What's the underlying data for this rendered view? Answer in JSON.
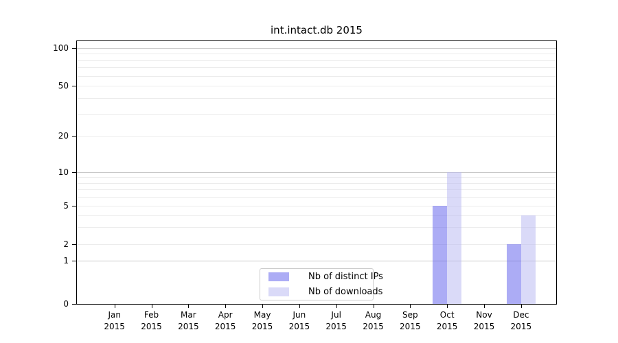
{
  "chart_data": {
    "type": "bar",
    "title": "int.intact.db 2015",
    "categories": [
      "Jan",
      "Feb",
      "Mar",
      "Apr",
      "May",
      "Jun",
      "Jul",
      "Aug",
      "Sep",
      "Oct",
      "Nov",
      "Dec"
    ],
    "x_year_label": "2015",
    "series": [
      {
        "name": "Nb of distinct IPs",
        "color": "#5959eb",
        "opacity": 0.5,
        "values": [
          0,
          0,
          0,
          0,
          0,
          0,
          0,
          0,
          0,
          5,
          0,
          2
        ]
      },
      {
        "name": "Nb of downloads",
        "color": "#b6b6f1",
        "opacity": 0.5,
        "values": [
          0,
          0,
          0,
          0,
          0,
          0,
          0,
          0,
          0,
          10,
          0,
          4
        ]
      }
    ],
    "yticks": [
      0,
      1,
      2,
      5,
      10,
      20,
      50,
      100
    ],
    "major_gridlines": [
      1,
      10,
      100
    ],
    "minor_gridlines": [
      2,
      3,
      4,
      5,
      6,
      7,
      8,
      9,
      20,
      30,
      40,
      50,
      60,
      70,
      80,
      90
    ],
    "grid_major_color": "#c8c8c8",
    "grid_minor_color": "#ececec",
    "ylim": [
      0,
      113
    ],
    "yscale": "symlog-like",
    "grid": "horizontal",
    "legend_position": "lower center"
  }
}
